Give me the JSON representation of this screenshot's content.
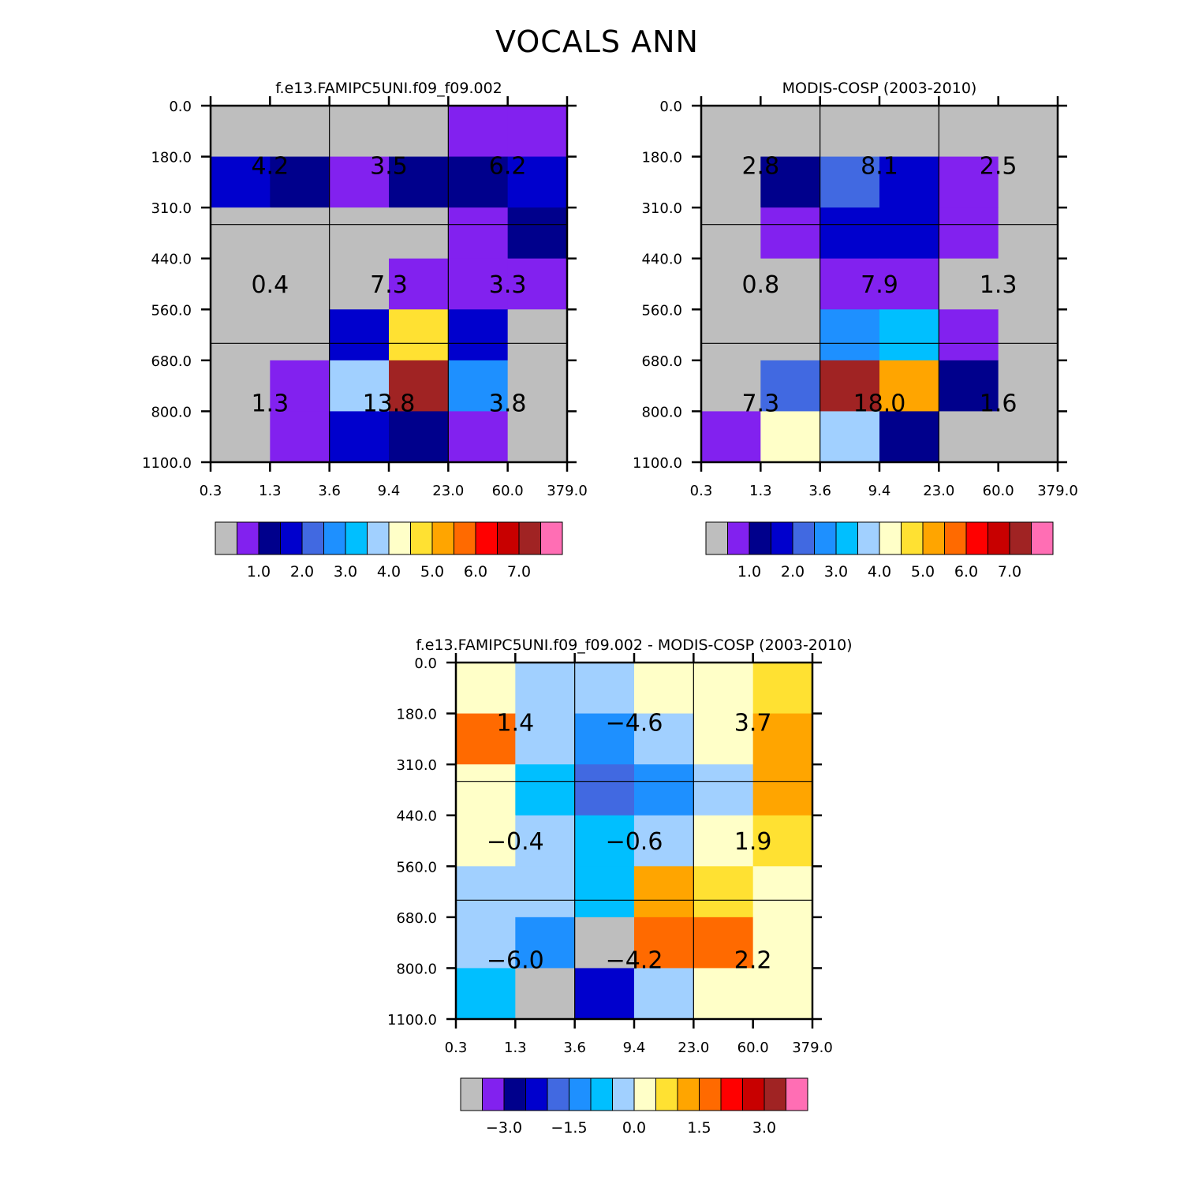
{
  "figure": {
    "title": "VOCALS ANN"
  },
  "colors": {
    "missing": "#bebebe",
    "palette": [
      "#bebebe",
      "#8221ef",
      "#00008c",
      "#0000cd",
      "#4169e1",
      "#1e90ff",
      "#00bfff",
      "#a1d0ff",
      "#ffffc8",
      "#ffe132",
      "#ffa500",
      "#ff6a00",
      "#ff0000",
      "#c80000",
      "#a02323",
      "#ff6eb4"
    ]
  },
  "chart_data": [
    {
      "type": "heatmap",
      "id": "model",
      "title": "f.e13.FAMIPC5UNI.f09_f09.002",
      "x_ticks": [
        "0.3",
        "1.3",
        "3.6",
        "9.4",
        "23.0",
        "60.0",
        "379.0"
      ],
      "y_ticks": [
        "0.0",
        "180.0",
        "310.0",
        "440.0",
        "560.0",
        "680.0",
        "800.0",
        "1100.0"
      ],
      "cell_colors": [
        [
          0,
          0,
          0,
          0,
          1,
          1
        ],
        [
          3,
          2,
          1,
          2,
          2,
          3
        ],
        [
          0,
          0,
          0,
          0,
          1,
          2
        ],
        [
          0,
          0,
          0,
          1,
          1,
          1
        ],
        [
          0,
          0,
          3,
          9,
          3,
          0
        ],
        [
          0,
          1,
          7,
          14,
          5,
          0
        ],
        [
          0,
          1,
          3,
          2,
          1,
          0
        ]
      ],
      "group_values": [
        [
          "4.2",
          "3.5",
          "6.2"
        ],
        [
          "0.4",
          "7.3",
          "3.3"
        ],
        [
          "1.3",
          "13.8",
          "3.8"
        ]
      ],
      "colorbar": {
        "tick_labels": [
          "1.0",
          "2.0",
          "3.0",
          "4.0",
          "5.0",
          "6.0",
          "7.0"
        ]
      }
    },
    {
      "type": "heatmap",
      "id": "obs",
      "title": "MODIS-COSP (2003-2010)",
      "x_ticks": [
        "0.3",
        "1.3",
        "3.6",
        "9.4",
        "23.0",
        "60.0",
        "379.0"
      ],
      "y_ticks": [
        "0.0",
        "180.0",
        "310.0",
        "440.0",
        "560.0",
        "680.0",
        "800.0",
        "1100.0"
      ],
      "cell_colors": [
        [
          0,
          0,
          0,
          0,
          0,
          0
        ],
        [
          0,
          2,
          4,
          3,
          1,
          0
        ],
        [
          0,
          1,
          3,
          3,
          1,
          0
        ],
        [
          0,
          0,
          1,
          1,
          0,
          0
        ],
        [
          0,
          0,
          5,
          6,
          1,
          0
        ],
        [
          0,
          4,
          14,
          10,
          2,
          0
        ],
        [
          1,
          8,
          7,
          2,
          0,
          0
        ]
      ],
      "group_values": [
        [
          "2.8",
          "8.1",
          "2.5"
        ],
        [
          "0.8",
          "7.9",
          "1.3"
        ],
        [
          "7.3",
          "18.0",
          "1.6"
        ]
      ],
      "colorbar": {
        "tick_labels": [
          "1.0",
          "2.0",
          "3.0",
          "4.0",
          "5.0",
          "6.0",
          "7.0"
        ]
      }
    },
    {
      "type": "heatmap",
      "id": "diff",
      "title": "f.e13.FAMIPC5UNI.f09_f09.002 - MODIS-COSP (2003-2010)",
      "x_ticks": [
        "0.3",
        "1.3",
        "3.6",
        "9.4",
        "23.0",
        "60.0",
        "379.0"
      ],
      "y_ticks": [
        "0.0",
        "180.0",
        "310.0",
        "440.0",
        "560.0",
        "680.0",
        "800.0",
        "1100.0"
      ],
      "cell_colors": [
        [
          8,
          7,
          7,
          8,
          8,
          9
        ],
        [
          11,
          7,
          5,
          7,
          8,
          10
        ],
        [
          8,
          6,
          4,
          5,
          7,
          10
        ],
        [
          8,
          7,
          6,
          7,
          8,
          9
        ],
        [
          7,
          7,
          6,
          10,
          9,
          8
        ],
        [
          7,
          5,
          0,
          11,
          11,
          8
        ],
        [
          6,
          0,
          3,
          7,
          8,
          8
        ]
      ],
      "group_values": [
        [
          "1.4",
          "-4.6",
          "3.7"
        ],
        [
          "-0.4",
          "-0.6",
          "1.9"
        ],
        [
          "-6.0",
          "-4.2",
          "2.2"
        ]
      ],
      "colorbar": {
        "tick_labels": [
          "-3.0",
          "-1.5",
          "0.0",
          "1.5",
          "3.0"
        ]
      }
    }
  ]
}
